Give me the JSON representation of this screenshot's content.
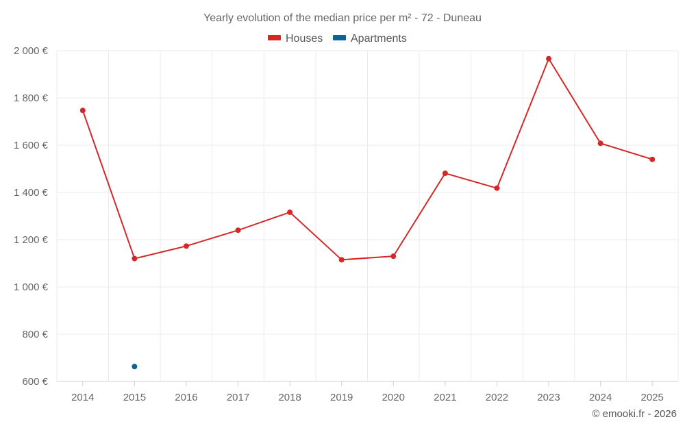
{
  "chart_data": {
    "type": "line",
    "title": "Yearly evolution of the median price per m² - 72 - Duneau",
    "x": [
      "2014",
      "2015",
      "2016",
      "2017",
      "2018",
      "2019",
      "2020",
      "2021",
      "2022",
      "2023",
      "2024",
      "2025"
    ],
    "series": [
      {
        "name": "Houses",
        "color": "#d62728",
        "values": [
          1747,
          1120,
          1173,
          1240,
          1316,
          1115,
          1130,
          1481,
          1418,
          1966,
          1608,
          1540
        ]
      },
      {
        "name": "Apartments",
        "color": "#0b6396",
        "values": [
          null,
          663,
          null,
          null,
          null,
          null,
          null,
          null,
          null,
          null,
          null,
          null
        ]
      }
    ],
    "ylim": [
      600,
      2000
    ],
    "yticks": [
      600,
      800,
      1000,
      1200,
      1400,
      1600,
      1800,
      2000
    ],
    "ytick_labels": [
      "600 €",
      "800 €",
      "1 000 €",
      "1 200 €",
      "1 400 €",
      "1 600 €",
      "1 800 €",
      "2 000 €"
    ],
    "xlabel": "",
    "ylabel": "",
    "grid": true,
    "legend": "top-center"
  },
  "credit": "© emooki.fr - 2026"
}
